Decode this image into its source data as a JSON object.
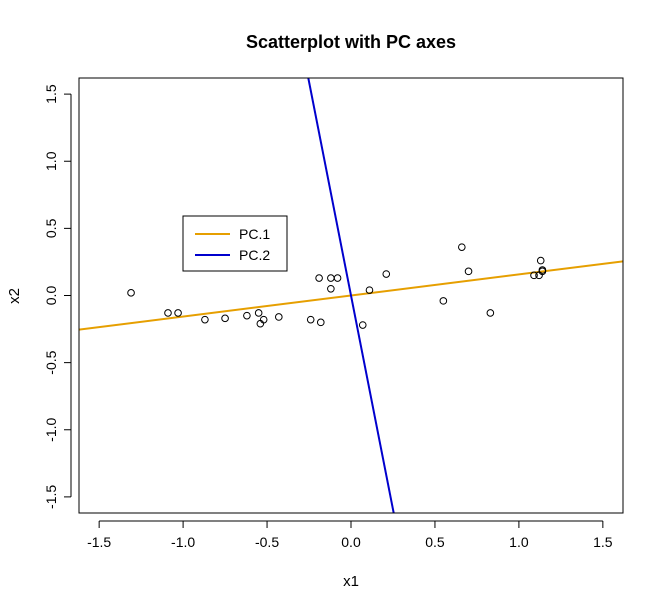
{
  "chart_data": {
    "type": "scatter",
    "title": "Scatterplot with PC axes",
    "xlabel": "x1",
    "ylabel": "x2",
    "xlim": [
      -1.62,
      1.62
    ],
    "ylim": [
      -1.62,
      1.62
    ],
    "xticks": [
      "-1.5",
      "-1.0",
      "-0.5",
      "0.0",
      "0.5",
      "1.0",
      "1.5"
    ],
    "yticks": [
      "-1.5",
      "-1.0",
      "-0.5",
      "0.0",
      "0.5",
      "1.0",
      "1.5"
    ],
    "grid": false,
    "legend_placement": "upper-left",
    "points": [
      {
        "x": -1.31,
        "y": 0.02
      },
      {
        "x": -1.09,
        "y": -0.13
      },
      {
        "x": -1.03,
        "y": -0.13
      },
      {
        "x": -0.87,
        "y": -0.18
      },
      {
        "x": -0.75,
        "y": -0.17
      },
      {
        "x": -0.62,
        "y": -0.15
      },
      {
        "x": -0.55,
        "y": -0.13
      },
      {
        "x": -0.54,
        "y": -0.21
      },
      {
        "x": -0.52,
        "y": -0.18
      },
      {
        "x": -0.43,
        "y": -0.16
      },
      {
        "x": -0.24,
        "y": -0.18
      },
      {
        "x": -0.19,
        "y": 0.13
      },
      {
        "x": -0.18,
        "y": -0.2
      },
      {
        "x": -0.12,
        "y": 0.13
      },
      {
        "x": -0.12,
        "y": 0.05
      },
      {
        "x": -0.08,
        "y": 0.13
      },
      {
        "x": 0.07,
        "y": -0.22
      },
      {
        "x": 0.11,
        "y": 0.04
      },
      {
        "x": 0.21,
        "y": 0.16
      },
      {
        "x": 0.55,
        "y": -0.04
      },
      {
        "x": 0.66,
        "y": 0.36
      },
      {
        "x": 0.7,
        "y": 0.18
      },
      {
        "x": 0.83,
        "y": -0.13
      },
      {
        "x": 1.09,
        "y": 0.15
      },
      {
        "x": 1.12,
        "y": 0.15
      },
      {
        "x": 1.13,
        "y": 0.26
      },
      {
        "x": 1.14,
        "y": 0.19
      },
      {
        "x": 1.14,
        "y": 0.18
      }
    ],
    "series": [
      {
        "name": "PC.1",
        "color": "#E69F00",
        "slope": 0.157,
        "intercept": 0.0
      },
      {
        "name": "PC.2",
        "color": "#0000CD",
        "slope": -6.37,
        "intercept": 0.0
      }
    ]
  }
}
